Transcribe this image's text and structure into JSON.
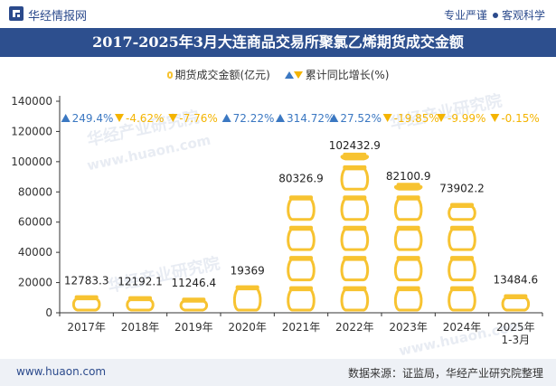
{
  "header": {
    "brand": "华经情报网",
    "tagline_left": "专业严谨",
    "tagline_right": "客观科学"
  },
  "title": "2017-2025年3月大连商品交易所聚氯乙烯期货成交金额",
  "legend": {
    "series1": "期货成交金额(亿元)",
    "series2": "累计同比增长(%)"
  },
  "footer": {
    "url": "www.huaon.com",
    "source": "数据来源：证监局，华经产业研究院整理"
  },
  "watermarks": [
    "华经产业研究院",
    "www.huaon.com",
    "华经产业研究院",
    "华经产业研究院",
    "www.huaon.com"
  ],
  "colors": {
    "title_bg": "#2d4f8e",
    "coin": "#f7c331",
    "coin_dark": "#e0a800",
    "up": "#3b78c2",
    "down": "#f4b400"
  },
  "chart_data": {
    "type": "bar",
    "categories": [
      "2017年",
      "2018年",
      "2019年",
      "2020年",
      "2021年",
      "2022年",
      "2023年",
      "2024年",
      "2025年\n1-3月"
    ],
    "series": [
      {
        "name": "期货成交金额(亿元)",
        "values": [
          12783.3,
          12192.1,
          11246.4,
          19369,
          80326.9,
          102432.9,
          82100.9,
          73902.2,
          13484.6
        ],
        "value_labels": [
          "12783.3",
          "12192.1",
          "11246.4",
          "19369",
          "80326.9",
          "102432.9",
          "82100.9",
          "73902.2",
          "13484.6"
        ]
      },
      {
        "name": "累计同比增长(%)",
        "values": [
          249.4,
          -4.62,
          -7.76,
          72.22,
          314.72,
          27.52,
          -19.85,
          -9.99,
          -0.15
        ],
        "value_labels": [
          "249.4%",
          "-4.62%",
          "-7.76%",
          "72.22%",
          "314.72%",
          "27.52%",
          "-19.85%",
          "-9.99%",
          "-0.15%"
        ]
      }
    ],
    "yticks": [
      "0",
      "20000",
      "40000",
      "60000",
      "80000",
      "100000",
      "120000",
      "140000"
    ],
    "ylim": [
      0,
      140000
    ],
    "unit_per_coin": 20000
  }
}
